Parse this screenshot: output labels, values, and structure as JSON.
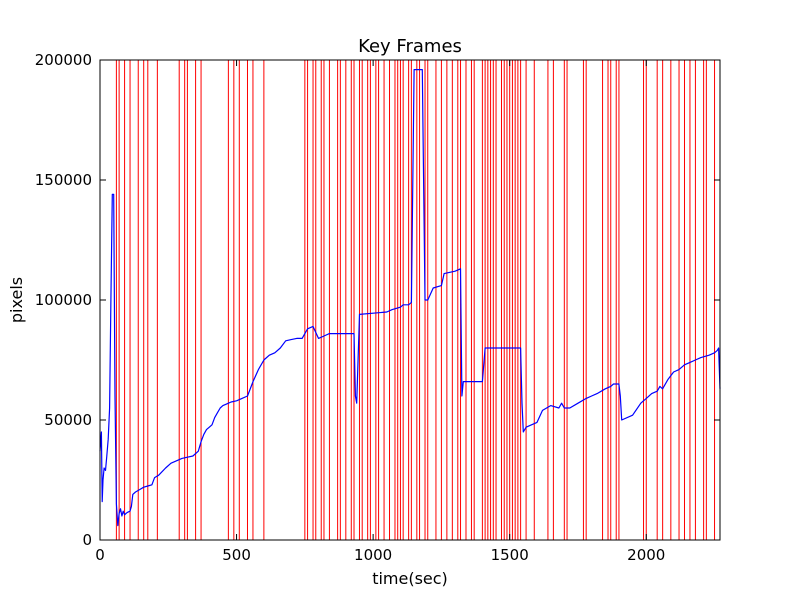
{
  "chart_data": {
    "type": "line",
    "title": "Key Frames",
    "xlabel": "time(sec)",
    "ylabel": "pixels",
    "xlim": [
      0,
      2270
    ],
    "ylim": [
      0,
      200000
    ],
    "x_ticks": [
      0,
      500,
      1000,
      1500,
      2000
    ],
    "y_ticks": [
      0,
      50000,
      100000,
      150000,
      200000
    ],
    "x_tick_labels": [
      "0",
      "500",
      "1000",
      "1500",
      "2000"
    ],
    "y_tick_labels": [
      "0",
      "50000",
      "100000",
      "150000",
      "200000"
    ],
    "grid": false,
    "legend": "none",
    "colors": {
      "series": "#0000ff",
      "keyframes": "#ff0000",
      "axes": "#000000",
      "background": "#ffffff"
    },
    "series": [
      {
        "x": [
          0,
          5,
          8,
          11,
          15,
          20,
          25,
          30,
          35,
          40,
          45,
          50,
          55,
          60,
          65,
          70,
          75,
          80,
          85,
          90,
          95,
          100,
          110,
          115,
          120,
          130,
          145,
          160,
          175,
          190,
          200,
          215,
          240,
          260,
          280,
          300,
          320,
          340,
          360,
          370,
          380,
          390,
          400,
          410,
          420,
          430,
          440,
          450,
          460,
          470,
          480,
          500,
          520,
          540,
          560,
          580,
          600,
          620,
          640,
          660,
          680,
          700,
          720,
          740,
          760,
          780,
          800,
          820,
          840,
          850,
          855,
          860,
          900,
          930,
          935,
          940,
          950,
          1000,
          1050,
          1070,
          1100,
          1110,
          1130,
          1140,
          1150,
          1160,
          1170,
          1180,
          1190,
          1200,
          1220,
          1250,
          1260,
          1300,
          1320,
          1325,
          1330,
          1380,
          1400,
          1410,
          1500,
          1530,
          1540,
          1545,
          1550,
          1560,
          1580,
          1600,
          1620,
          1650,
          1680,
          1690,
          1700,
          1720,
          1750,
          1780,
          1800,
          1820,
          1850,
          1870,
          1880,
          1890,
          1900,
          1905,
          1910,
          1950,
          1980,
          1990,
          2000,
          2020,
          2040,
          2050,
          2060,
          2080,
          2100,
          2120,
          2140,
          2160,
          2180,
          2200,
          2230,
          2250,
          2260,
          2265,
          2270
        ],
        "y": [
          37000,
          45000,
          16000,
          25000,
          30000,
          29000,
          35000,
          42000,
          55000,
          100000,
          144000,
          144000,
          60000,
          15000,
          6000,
          11000,
          13000,
          10000,
          12000,
          10500,
          11000,
          11500,
          12000,
          14000,
          19000,
          20000,
          21000,
          22000,
          22500,
          23000,
          26000,
          27000,
          30000,
          32000,
          33000,
          34000,
          34500,
          35000,
          37000,
          41000,
          44000,
          46000,
          47000,
          48000,
          51000,
          53000,
          55000,
          56000,
          56500,
          57000,
          57500,
          58000,
          59000,
          60000,
          66000,
          71000,
          75000,
          77000,
          78000,
          80000,
          83000,
          83500,
          84000,
          84000,
          88000,
          89000,
          84000,
          85000,
          86000,
          86000,
          86000,
          86000,
          86000,
          86000,
          60000,
          57000,
          94000,
          94500,
          95000,
          96000,
          97000,
          98000,
          98000,
          99000,
          196000,
          196000,
          196000,
          196000,
          100000,
          100000,
          105000,
          106000,
          111000,
          112000,
          113000,
          60000,
          66000,
          66000,
          66000,
          80000,
          80000,
          80000,
          80000,
          57000,
          45000,
          47000,
          48000,
          49000,
          54000,
          56000,
          55000,
          57000,
          55000,
          55000,
          57000,
          59000,
          60000,
          61000,
          63000,
          64000,
          65000,
          65000,
          65000,
          60000,
          50000,
          52000,
          57000,
          58000,
          59000,
          61000,
          62000,
          64000,
          63000,
          67000,
          70000,
          71000,
          73000,
          74000,
          75000,
          76000,
          77000,
          78000,
          79000,
          80000,
          63000
        ]
      }
    ],
    "keyframes": [
      0,
      60,
      70,
      90,
      110,
      140,
      160,
      175,
      210,
      290,
      310,
      320,
      350,
      370,
      470,
      490,
      510,
      540,
      560,
      600,
      750,
      760,
      780,
      790,
      810,
      820,
      840,
      870,
      880,
      900,
      920,
      930,
      950,
      960,
      980,
      990,
      1010,
      1020,
      1040,
      1060,
      1080,
      1090,
      1100,
      1110,
      1130,
      1140,
      1160,
      1170,
      1190,
      1200,
      1230,
      1250,
      1270,
      1290,
      1310,
      1320,
      1340,
      1360,
      1370,
      1400,
      1410,
      1420,
      1430,
      1440,
      1450,
      1470,
      1480,
      1490,
      1500,
      1510,
      1520,
      1530,
      1540,
      1560,
      1590,
      1640,
      1660,
      1700,
      1710,
      1770,
      1780,
      1840,
      1860,
      1870,
      1890,
      1900,
      1990,
      2000,
      2040,
      2060,
      2090,
      2120,
      2140,
      2160,
      2180,
      2210,
      2220,
      2250,
      2270
    ]
  }
}
